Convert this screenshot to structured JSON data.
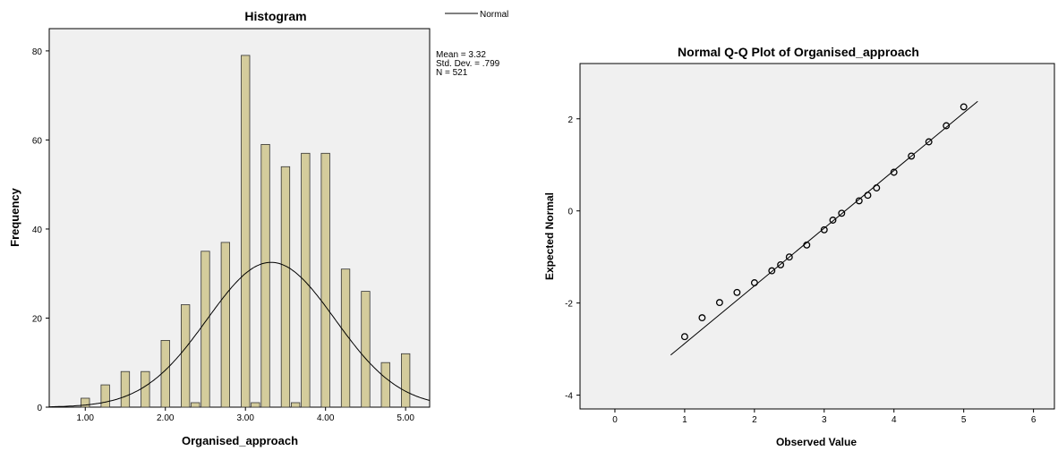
{
  "chart_data": [
    {
      "type": "bar",
      "title": "Histogram",
      "xlabel": "Organised_approach",
      "ylabel": "Frequency",
      "xlim": [
        0.55,
        5.3
      ],
      "ylim": [
        0,
        85
      ],
      "x_ticks": [
        1.0,
        2.0,
        3.0,
        4.0,
        5.0
      ],
      "x_tick_labels": [
        "1.00",
        "2.00",
        "3.00",
        "4.00",
        "5.00"
      ],
      "y_ticks": [
        0,
        20,
        40,
        60,
        80
      ],
      "y_tick_labels": [
        "0",
        "20",
        "40",
        "60",
        "80"
      ],
      "bin_width": 0.125,
      "bins": [
        {
          "x": 1.0,
          "count": 2
        },
        {
          "x": 1.25,
          "count": 5
        },
        {
          "x": 1.5,
          "count": 8
        },
        {
          "x": 1.75,
          "count": 8
        },
        {
          "x": 2.0,
          "count": 15
        },
        {
          "x": 2.25,
          "count": 23
        },
        {
          "x": 2.375,
          "count": 1
        },
        {
          "x": 2.5,
          "count": 35
        },
        {
          "x": 2.75,
          "count": 37
        },
        {
          "x": 3.0,
          "count": 79
        },
        {
          "x": 3.125,
          "count": 1
        },
        {
          "x": 3.25,
          "count": 59
        },
        {
          "x": 3.5,
          "count": 54
        },
        {
          "x": 3.625,
          "count": 1
        },
        {
          "x": 3.75,
          "count": 57
        },
        {
          "x": 4.0,
          "count": 57
        },
        {
          "x": 4.25,
          "count": 31
        },
        {
          "x": 4.5,
          "count": 26
        },
        {
          "x": 4.75,
          "count": 10
        },
        {
          "x": 5.0,
          "count": 12
        }
      ],
      "normal_curve": {
        "mean": 3.32,
        "sd": 0.799,
        "n": 521,
        "bin_width": 0.125
      },
      "legend": [
        "Normal"
      ],
      "legend_position": "top-right",
      "stats": [
        "Mean = 3.32",
        "Std. Dev. = .799",
        "N = 521"
      ],
      "colors": {
        "bar_fill": "#d4cc9c",
        "bar_stroke": "#333333",
        "plot_bg": "#f0f0f0",
        "curve": "#000000"
      }
    },
    {
      "type": "scatter",
      "title": "Normal Q-Q Plot of Organised_approach",
      "xlabel": "Observed Value",
      "ylabel": "Expected Normal",
      "xlim": [
        -0.5,
        6.3
      ],
      "ylim": [
        -4.3,
        3.2
      ],
      "x_ticks": [
        0,
        1,
        2,
        3,
        4,
        5,
        6
      ],
      "x_tick_labels": [
        "0",
        "1",
        "2",
        "3",
        "4",
        "5",
        "6"
      ],
      "y_ticks": [
        -4,
        -2,
        0,
        2
      ],
      "y_tick_labels": [
        "-4",
        "-2",
        "0",
        "2"
      ],
      "points": [
        {
          "x": 1.0,
          "y": -2.73
        },
        {
          "x": 1.25,
          "y": -2.32
        },
        {
          "x": 1.5,
          "y": -1.99
        },
        {
          "x": 1.75,
          "y": -1.77
        },
        {
          "x": 2.0,
          "y": -1.56
        },
        {
          "x": 2.25,
          "y": -1.3
        },
        {
          "x": 2.375,
          "y": -1.17
        },
        {
          "x": 2.5,
          "y": -1.0
        },
        {
          "x": 2.75,
          "y": -0.74
        },
        {
          "x": 3.0,
          "y": -0.41
        },
        {
          "x": 3.125,
          "y": -0.2
        },
        {
          "x": 3.25,
          "y": -0.05
        },
        {
          "x": 3.5,
          "y": 0.22
        },
        {
          "x": 3.625,
          "y": 0.34
        },
        {
          "x": 3.75,
          "y": 0.5
        },
        {
          "x": 4.0,
          "y": 0.84
        },
        {
          "x": 4.25,
          "y": 1.19
        },
        {
          "x": 4.5,
          "y": 1.5
        },
        {
          "x": 4.75,
          "y": 1.85
        },
        {
          "x": 5.0,
          "y": 2.26
        }
      ],
      "reference_line": {
        "x": [
          0.8,
          5.2
        ],
        "y": [
          -3.13,
          2.38
        ]
      },
      "colors": {
        "plot_bg": "#f0f0f0",
        "marker": "#000000",
        "line": "#000000"
      }
    }
  ]
}
